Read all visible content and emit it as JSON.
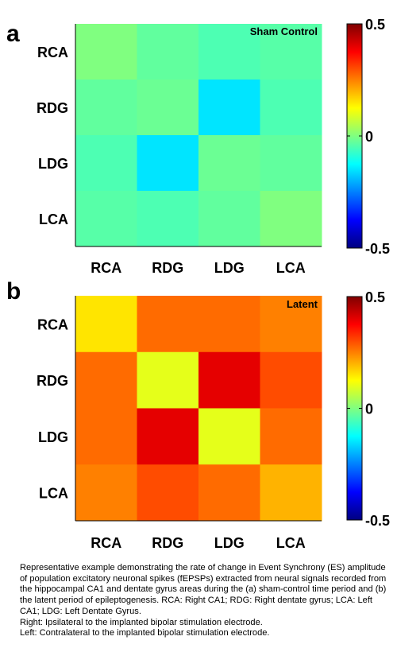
{
  "chart_data": [
    {
      "panel_label": "a",
      "type": "heatmap",
      "title": "Sham Control",
      "x_categories": [
        "RCA",
        "RDG",
        "LDG",
        "LCA"
      ],
      "y_categories": [
        "RCA",
        "RDG",
        "LDG",
        "LCA"
      ],
      "colorbar": {
        "min": -0.5,
        "max": 0.5,
        "ticks": [
          "0.5",
          "0",
          "-0.5"
        ],
        "colormap": "jet"
      },
      "grid": false,
      "values": [
        [
          0.0,
          -0.03,
          -0.05,
          -0.04
        ],
        [
          -0.03,
          -0.02,
          -0.15,
          -0.05
        ],
        [
          -0.05,
          -0.15,
          -0.02,
          -0.03
        ],
        [
          -0.04,
          -0.05,
          -0.03,
          0.0
        ]
      ]
    },
    {
      "panel_label": "b",
      "type": "heatmap",
      "title": "Latent",
      "x_categories": [
        "RCA",
        "RDG",
        "LDG",
        "LCA"
      ],
      "y_categories": [
        "RCA",
        "RDG",
        "LDG",
        "LCA"
      ],
      "colorbar": {
        "min": -0.5,
        "max": 0.5,
        "ticks": [
          "0.5",
          "0",
          "-0.5"
        ],
        "colormap": "jet"
      },
      "grid": false,
      "values": [
        [
          0.15,
          0.27,
          0.27,
          0.25
        ],
        [
          0.27,
          0.1,
          0.4,
          0.3
        ],
        [
          0.27,
          0.4,
          0.1,
          0.27
        ],
        [
          0.25,
          0.3,
          0.27,
          0.2
        ]
      ]
    }
  ],
  "caption": [
    "Representative example demonstrating the rate of change in Event Synchrony (ES) amplitude of population excitatory neuronal spikes (fEPSPs) extracted from neural signals recorded from the hippocampal CA1 and dentate gyrus areas during the (a) sham-control time period and (b) the latent period of epileptogenesis. RCA: Right CA1; RDG: Right dentate gyrus; LCA: Left CA1; LDG: Left Dentate Gyrus.",
    "Right: Ipsilateral to the implanted bipolar stimulation electrode.",
    "Left: Contralateral to the implanted bipolar stimulation electrode."
  ]
}
